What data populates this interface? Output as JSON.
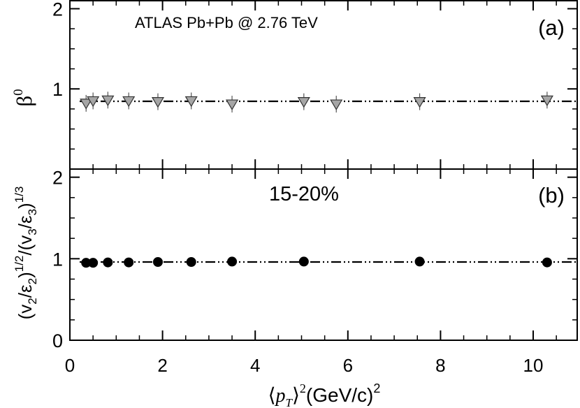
{
  "chart_data": [
    {
      "panel": "a",
      "type": "scatter",
      "panel_label": "(a)",
      "annotation": "ATLAS  Pb+Pb @ 2.76 TeV",
      "ylabel_text": "β",
      "ylabel_sup": "0",
      "ylim": [
        0,
        2.1
      ],
      "yticks": [
        1,
        2
      ],
      "marker": "down-triangle",
      "marker_color": "#a6a6a6",
      "points": {
        "x": [
          0.35,
          0.5,
          0.82,
          1.27,
          1.9,
          2.62,
          3.5,
          5.05,
          5.75,
          7.55,
          10.3
        ],
        "y": [
          0.82,
          0.85,
          0.86,
          0.85,
          0.84,
          0.85,
          0.81,
          0.84,
          0.81,
          0.84,
          0.86
        ]
      },
      "fit_line": {
        "style": "dash-dot-dot",
        "y": 0.845,
        "color": "#000000"
      }
    },
    {
      "panel": "b",
      "type": "scatter",
      "panel_label": "(b)",
      "annotation": "15-20%",
      "ylabel_parts": [
        "(v",
        "2",
        "/ε",
        "2",
        ")",
        "1/2",
        "/(v",
        "3",
        "/ε",
        "3",
        ")",
        "1/3"
      ],
      "ylim": [
        0,
        2.1
      ],
      "yticks": [
        0,
        1,
        2
      ],
      "marker": "circle",
      "marker_color": "#000000",
      "points": {
        "x": [
          0.35,
          0.5,
          0.82,
          1.27,
          1.9,
          2.62,
          3.5,
          5.05,
          7.55,
          10.3
        ],
        "y": [
          0.95,
          0.95,
          0.955,
          0.955,
          0.96,
          0.96,
          0.965,
          0.965,
          0.965,
          0.955
        ]
      },
      "fit_line": {
        "style": "dash-dot-dot",
        "y": 0.96,
        "color": "#000000"
      }
    }
  ],
  "x_axis": {
    "xlim": [
      0,
      10.95
    ],
    "ticks": [
      0,
      2,
      4,
      6,
      8,
      10
    ],
    "tick_labels": [
      "0",
      "2",
      "4",
      "6",
      "8",
      "10"
    ],
    "label_parts": [
      "⟨",
      "p",
      "T",
      "⟩",
      "2",
      "(GeV/c)",
      "2"
    ]
  }
}
